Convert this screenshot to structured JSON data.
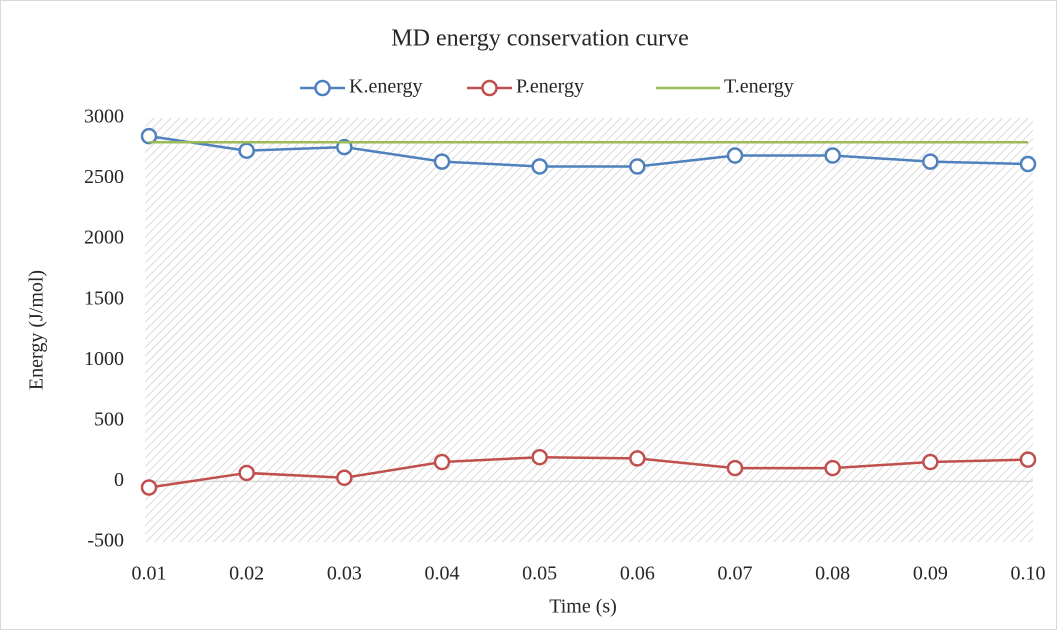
{
  "chart_data": {
    "type": "line",
    "title": "MD energy conservation curve",
    "x_label": "Time (s)",
    "y_label": "Energy (J/mol)",
    "categories": [
      "0.01",
      "0.02",
      "0.03",
      "0.04",
      "0.05",
      "0.06",
      "0.07",
      "0.08",
      "0.09",
      "0.10"
    ],
    "series": [
      {
        "name": "K.energy",
        "color": "#4f81bd",
        "marker": true,
        "values": [
          2850,
          2730,
          2760,
          2640,
          2600,
          2600,
          2690,
          2690,
          2640,
          2620
        ]
      },
      {
        "name": "P.energy",
        "color": "#c0504d",
        "marker": true,
        "values": [
          -50,
          70,
          30,
          160,
          200,
          190,
          110,
          110,
          160,
          180
        ]
      },
      {
        "name": "T.energy",
        "color": "#9bbb59",
        "marker": false,
        "values": [
          2800,
          2800,
          2800,
          2800,
          2800,
          2800,
          2800,
          2800,
          2800,
          2800
        ]
      }
    ],
    "ylim": [
      -500,
      3000
    ],
    "yticks": [
      -500,
      0,
      500,
      1000,
      1500,
      2000,
      2500,
      3000
    ],
    "legend": "top"
  }
}
